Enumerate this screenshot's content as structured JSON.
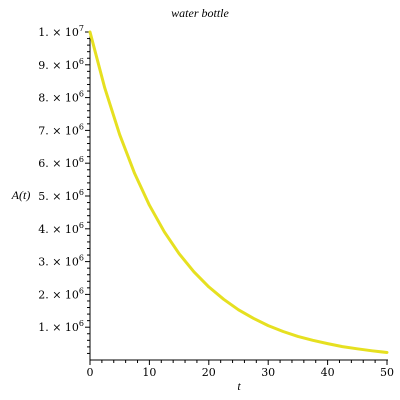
{
  "chart_data": {
    "type": "line",
    "title": "water bottle",
    "xlabel": "t",
    "ylabel": "A(t)",
    "xlim": [
      0,
      50
    ],
    "ylim": [
      0,
      10000000
    ],
    "grid": false,
    "x_ticks": [
      {
        "value": 0,
        "label": "0"
      },
      {
        "value": 10,
        "label": "10"
      },
      {
        "value": 20,
        "label": "20"
      },
      {
        "value": 30,
        "label": "30"
      },
      {
        "value": 40,
        "label": "40"
      },
      {
        "value": 50,
        "label": "50"
      }
    ],
    "y_ticks": [
      {
        "value": 1000000,
        "mant": "1.",
        "exp": "6"
      },
      {
        "value": 2000000,
        "mant": "2.",
        "exp": "6"
      },
      {
        "value": 3000000,
        "mant": "3.",
        "exp": "6"
      },
      {
        "value": 4000000,
        "mant": "4.",
        "exp": "6"
      },
      {
        "value": 5000000,
        "mant": "5.",
        "exp": "6"
      },
      {
        "value": 6000000,
        "mant": "6.",
        "exp": "6"
      },
      {
        "value": 7000000,
        "mant": "7.",
        "exp": "6"
      },
      {
        "value": 8000000,
        "mant": "8.",
        "exp": "6"
      },
      {
        "value": 9000000,
        "mant": "9.",
        "exp": "6"
      },
      {
        "value": 10000000,
        "mant": "1.",
        "exp": "7"
      }
    ],
    "series": [
      {
        "color": "#e6e020",
        "x": [
          0,
          2.5,
          5,
          7.5,
          10,
          12.5,
          15,
          17.5,
          20,
          22.5,
          25,
          27.5,
          30,
          32.5,
          35,
          37.5,
          40,
          42.5,
          45,
          47.5,
          50
        ],
        "y": [
          10000000,
          8290000,
          6870000,
          5690000,
          4720000,
          3910000,
          3240000,
          2690000,
          2230000,
          1850000,
          1530000,
          1270000,
          1050000,
          870000,
          720000,
          600000,
          500000,
          410000,
          340000,
          280000,
          230000
        ]
      }
    ]
  }
}
